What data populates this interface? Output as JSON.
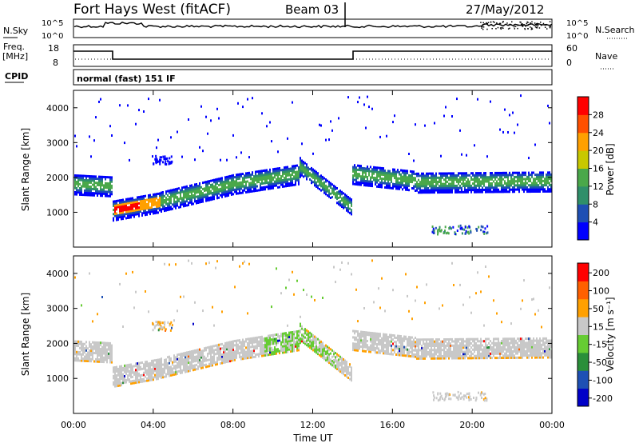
{
  "header": {
    "radar": "Fort Hays West (fitACF)",
    "beam": "Beam 03",
    "date": "27/May/2012"
  },
  "noise_panel": {
    "left_label": "N.Sky",
    "left_ticks": [
      "10^5",
      "10^0"
    ],
    "right_ticks": [
      "10^5",
      "10^0"
    ],
    "right_label": "N.Search"
  },
  "freq_panel": {
    "left_label_1": "Freq.",
    "left_label_2": "[MHz]",
    "left_ticks": [
      "18",
      "8"
    ],
    "right_ticks": [
      "60",
      "0"
    ],
    "right_label": "Nave"
  },
  "cpid": {
    "label": "CPID",
    "value": "normal (fast) 151 IF"
  },
  "chart_data": [
    {
      "type": "heatmap",
      "name": "power-panel",
      "xlabel": "Time UT",
      "ylabel": "Slant Range [km]",
      "yticks": [
        "1000",
        "2000",
        "3000",
        "4000"
      ],
      "ylim": [
        0,
        4500
      ],
      "colorbar_label": "Power [dB]",
      "colorbar_ticks": [
        "4",
        "8",
        "12",
        "16",
        "20",
        "24",
        "28"
      ],
      "colors": [
        "#0000ff",
        "#1e4fb4",
        "#2f8f6a",
        "#4aa84a",
        "#c8c800",
        "#ffa000",
        "#ff5000",
        "#ff0000"
      ]
    },
    {
      "type": "heatmap",
      "name": "velocity-panel",
      "xlabel": "Time UT",
      "ylabel": "Slant Range [km]",
      "yticks": [
        "1000",
        "2000",
        "3000",
        "4000"
      ],
      "ylim": [
        0,
        4500
      ],
      "colorbar_label": "Velocity [m s⁻¹]",
      "colorbar_ticks": [
        "200",
        "100",
        "50",
        "15",
        "-15",
        "-50",
        "-100",
        "-200"
      ],
      "colors": [
        "#0000c8",
        "#1e50b4",
        "#2a8f3a",
        "#66cc33",
        "#c8c8c8",
        "#ffa000",
        "#ff6000",
        "#ff0000"
      ]
    }
  ],
  "x_axis": {
    "ticks": [
      "00:00",
      "04:00",
      "08:00",
      "12:00",
      "16:00",
      "20:00",
      "00:00"
    ],
    "label": "Time UT"
  }
}
